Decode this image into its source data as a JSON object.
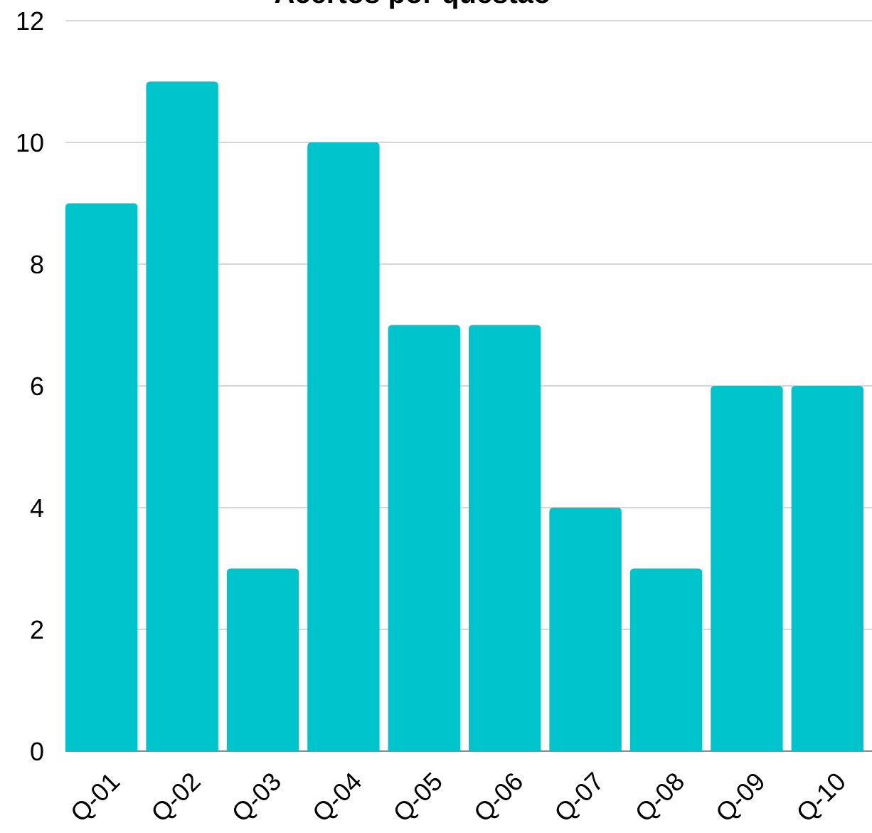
{
  "chart_data": {
    "type": "bar",
    "title": "Acertos por questão",
    "xlabel": "",
    "ylabel": "",
    "categories": [
      "Q-01",
      "Q-02",
      "Q-03",
      "Q-04",
      "Q-05",
      "Q-06",
      "Q-07",
      "Q-08",
      "Q-09",
      "Q-10"
    ],
    "values": [
      9,
      11,
      3,
      10,
      7,
      7,
      4,
      3,
      6,
      6
    ],
    "ylim": [
      0,
      12
    ],
    "yticks": [
      "0",
      "2",
      "4",
      "6",
      "8",
      "10",
      "12"
    ],
    "grid": true,
    "legend": "none",
    "bar_color": "#00c4cc",
    "grid_color": "#c8c8c8"
  }
}
